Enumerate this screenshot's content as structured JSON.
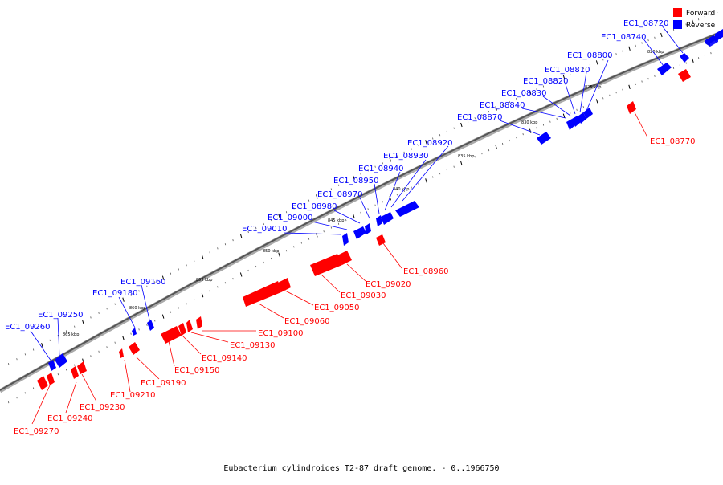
{
  "caption": "Eubacterium cylindroides T2-87 draft genome. - 0..1966750",
  "legend": {
    "forward": {
      "label": "Forward",
      "color": "#ff0000"
    },
    "reverse": {
      "label": "Reverse",
      "color": "#0000ff"
    }
  },
  "scale_labels": [
    "820 kbp",
    "825 kbp",
    "830 kbp",
    "835 kbp",
    "840 kbp",
    "845 kbp",
    "850 kbp",
    "855 kbp",
    "860 kbp",
    "865 kbp"
  ],
  "genes": [
    {
      "id": "EC1_08720",
      "strand": "reverse"
    },
    {
      "id": "EC1_08740",
      "strand": "reverse"
    },
    {
      "id": "EC1_08770",
      "strand": "forward"
    },
    {
      "id": "EC1_08800",
      "strand": "reverse"
    },
    {
      "id": "EC1_08810",
      "strand": "reverse"
    },
    {
      "id": "EC1_08820",
      "strand": "reverse"
    },
    {
      "id": "EC1_08830",
      "strand": "reverse"
    },
    {
      "id": "EC1_08840",
      "strand": "reverse"
    },
    {
      "id": "EC1_08870",
      "strand": "reverse"
    },
    {
      "id": "EC1_08920",
      "strand": "reverse"
    },
    {
      "id": "EC1_08930",
      "strand": "reverse"
    },
    {
      "id": "EC1_08940",
      "strand": "reverse"
    },
    {
      "id": "EC1_08950",
      "strand": "reverse"
    },
    {
      "id": "EC1_08960",
      "strand": "forward"
    },
    {
      "id": "EC1_08970",
      "strand": "reverse"
    },
    {
      "id": "EC1_08980",
      "strand": "reverse"
    },
    {
      "id": "EC1_09000",
      "strand": "reverse"
    },
    {
      "id": "EC1_09010",
      "strand": "reverse"
    },
    {
      "id": "EC1_09020",
      "strand": "forward"
    },
    {
      "id": "EC1_09030",
      "strand": "forward"
    },
    {
      "id": "EC1_09050",
      "strand": "forward"
    },
    {
      "id": "EC1_09060",
      "strand": "forward"
    },
    {
      "id": "EC1_09100",
      "strand": "forward"
    },
    {
      "id": "EC1_09130",
      "strand": "forward"
    },
    {
      "id": "EC1_09140",
      "strand": "forward"
    },
    {
      "id": "EC1_09150",
      "strand": "forward"
    },
    {
      "id": "EC1_09160",
      "strand": "reverse"
    },
    {
      "id": "EC1_09180",
      "strand": "reverse"
    },
    {
      "id": "EC1_09190",
      "strand": "forward"
    },
    {
      "id": "EC1_09210",
      "strand": "forward"
    },
    {
      "id": "EC1_09230",
      "strand": "forward"
    },
    {
      "id": "EC1_09240",
      "strand": "forward"
    },
    {
      "id": "EC1_09250",
      "strand": "reverse"
    },
    {
      "id": "EC1_09260",
      "strand": "reverse"
    },
    {
      "id": "EC1_09270",
      "strand": "forward"
    }
  ]
}
